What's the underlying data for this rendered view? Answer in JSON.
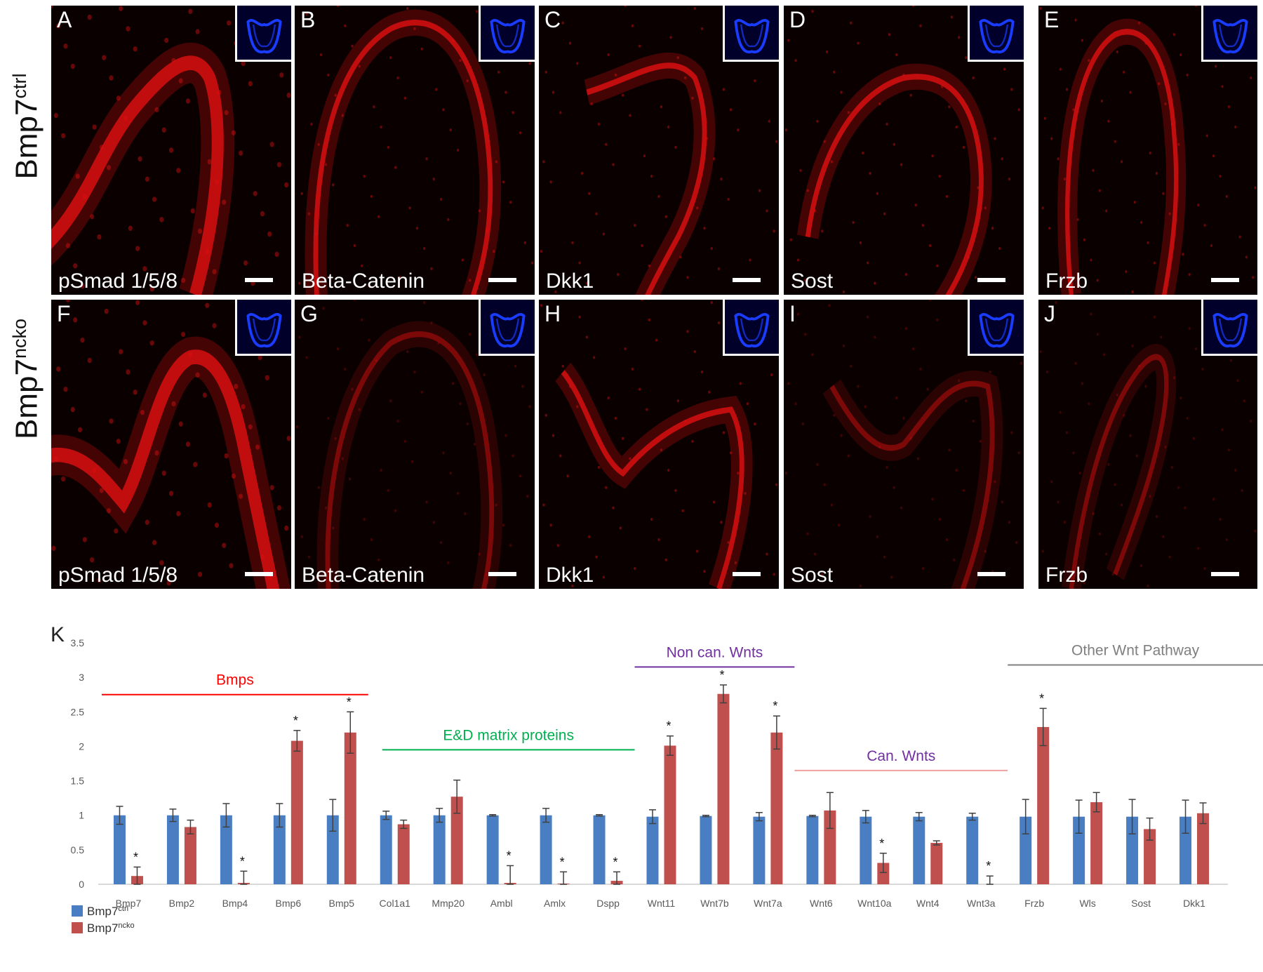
{
  "row_labels": [
    {
      "base": "Bmp7",
      "sup": "ctrl"
    },
    {
      "base": "Bmp7",
      "sup": "ncko"
    }
  ],
  "panels": [
    {
      "letter": "A",
      "stain": "pSmad 1/5/8"
    },
    {
      "letter": "B",
      "stain": "Beta-Catenin"
    },
    {
      "letter": "C",
      "stain": "Dkk1"
    },
    {
      "letter": "D",
      "stain": "Sost"
    },
    {
      "letter": "E",
      "stain": "Frzb"
    },
    {
      "letter": "F",
      "stain": "pSmad 1/5/8"
    },
    {
      "letter": "G",
      "stain": "Beta-Catenin"
    },
    {
      "letter": "H",
      "stain": "Dkk1"
    },
    {
      "letter": "I",
      "stain": "Sost"
    },
    {
      "letter": "J",
      "stain": "Frzb"
    }
  ],
  "colors": {
    "stain_red": "#e01010",
    "inset_blue": "#1a3cff",
    "ctrl_bar": "#4a7ec2",
    "ncko_bar": "#c0504d",
    "bmps_group": "#ff0000",
    "ed_group": "#00b050",
    "noncan_group": "#7030a0",
    "can_group_label": "#7030a0",
    "can_group_line": "#f0a0a0",
    "other_group": "#7f7f7f"
  },
  "chart_data": {
    "type": "bar",
    "panel_letter": "K",
    "categories": [
      "Bmp7",
      "Bmp2",
      "Bmp4",
      "Bmp6",
      "Bmp5",
      "Col1a1",
      "Mmp20",
      "Ambl",
      "Amlx",
      "Dspp",
      "Wnt11",
      "Wnt7b",
      "Wnt7a",
      "Wnt6",
      "Wnt10a",
      "Wnt4",
      "Wnt3a",
      "Frzb",
      "Wls",
      "Sost",
      "Dkk1"
    ],
    "series": [
      {
        "name": "Bmp7ctrl",
        "name_base": "Bmp7",
        "name_sup": "ctrl",
        "values": [
          1,
          1,
          1,
          1,
          1,
          1,
          1,
          1,
          1,
          1,
          0.98,
          0.99,
          0.98,
          0.99,
          0.98,
          0.98,
          0.98,
          0.98,
          0.98,
          0.98,
          0.98
        ],
        "errors": [
          0.13,
          0.09,
          0.17,
          0.17,
          0.23,
          0.06,
          0.1,
          0.01,
          0.1,
          0.01,
          0.1,
          0.01,
          0.06,
          0.01,
          0.09,
          0.06,
          0.05,
          0.25,
          0.24,
          0.25,
          0.24
        ]
      },
      {
        "name": "Bmp7ncko",
        "name_base": "Bmp7",
        "name_sup": "ncko",
        "values": [
          0.12,
          0.83,
          0.02,
          2.08,
          2.2,
          0.87,
          1.27,
          0.02,
          0.01,
          0.05,
          2.01,
          2.76,
          2.2,
          1.07,
          0.31,
          0.6,
          0.0,
          2.28,
          1.19,
          0.8,
          1.03
        ],
        "errors": [
          0.13,
          0.1,
          0.17,
          0.15,
          0.3,
          0.06,
          0.24,
          0.25,
          0.17,
          0.13,
          0.14,
          0.13,
          0.24,
          0.26,
          0.14,
          0.03,
          0.12,
          0.27,
          0.14,
          0.16,
          0.15
        ]
      }
    ],
    "significant": [
      true,
      false,
      true,
      true,
      true,
      false,
      false,
      true,
      true,
      true,
      true,
      true,
      true,
      false,
      true,
      false,
      true,
      true,
      false,
      false,
      false
    ],
    "significance_marker": "*",
    "ylim": [
      0,
      3.5
    ],
    "yticks": [
      "0",
      "0.5",
      "1",
      "1.5",
      "2",
      "2.5",
      "3",
      "3.5"
    ],
    "groups": [
      {
        "label": "Bmps",
        "first": 0,
        "last": 4,
        "level": 2.75
      },
      {
        "label": "E&D matrix proteins",
        "first": 5,
        "last": 9,
        "level": 1.95
      },
      {
        "label": "Non can. Wnts",
        "first": 10,
        "last": 12,
        "level": 3.15
      },
      {
        "label": "Can. Wnts",
        "first": 13,
        "last": 16,
        "level": 1.65
      },
      {
        "label": "Other Wnt Pathway",
        "first": 17,
        "last": 20,
        "level": 3.18
      }
    ],
    "legend_position": "bottom-left",
    "grid": false
  }
}
